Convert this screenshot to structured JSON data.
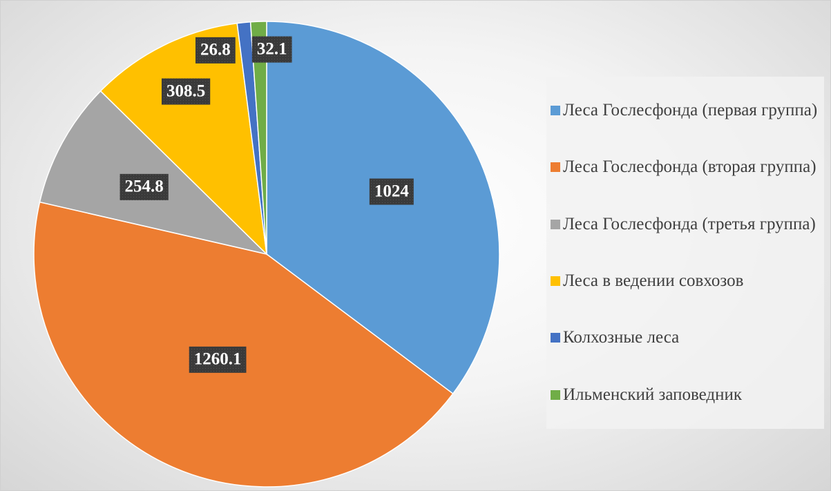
{
  "chart_data": {
    "type": "pie",
    "categories": [
      "Леса Гослесфонда (первая группа)",
      "Леса Гослесфонда (вторая группа)",
      "Леса Гослесфонда (третья группа)",
      "Леса в ведении совхозов",
      "Колхозные леса",
      "Ильменский заповедник"
    ],
    "values": [
      1024,
      1260.1,
      254.8,
      308.5,
      26.8,
      32.1
    ],
    "colors": [
      "#5b9bd5",
      "#ed7d31",
      "#a5a5a5",
      "#ffc000",
      "#4472c4",
      "#70ad47"
    ],
    "legend": "right"
  }
}
